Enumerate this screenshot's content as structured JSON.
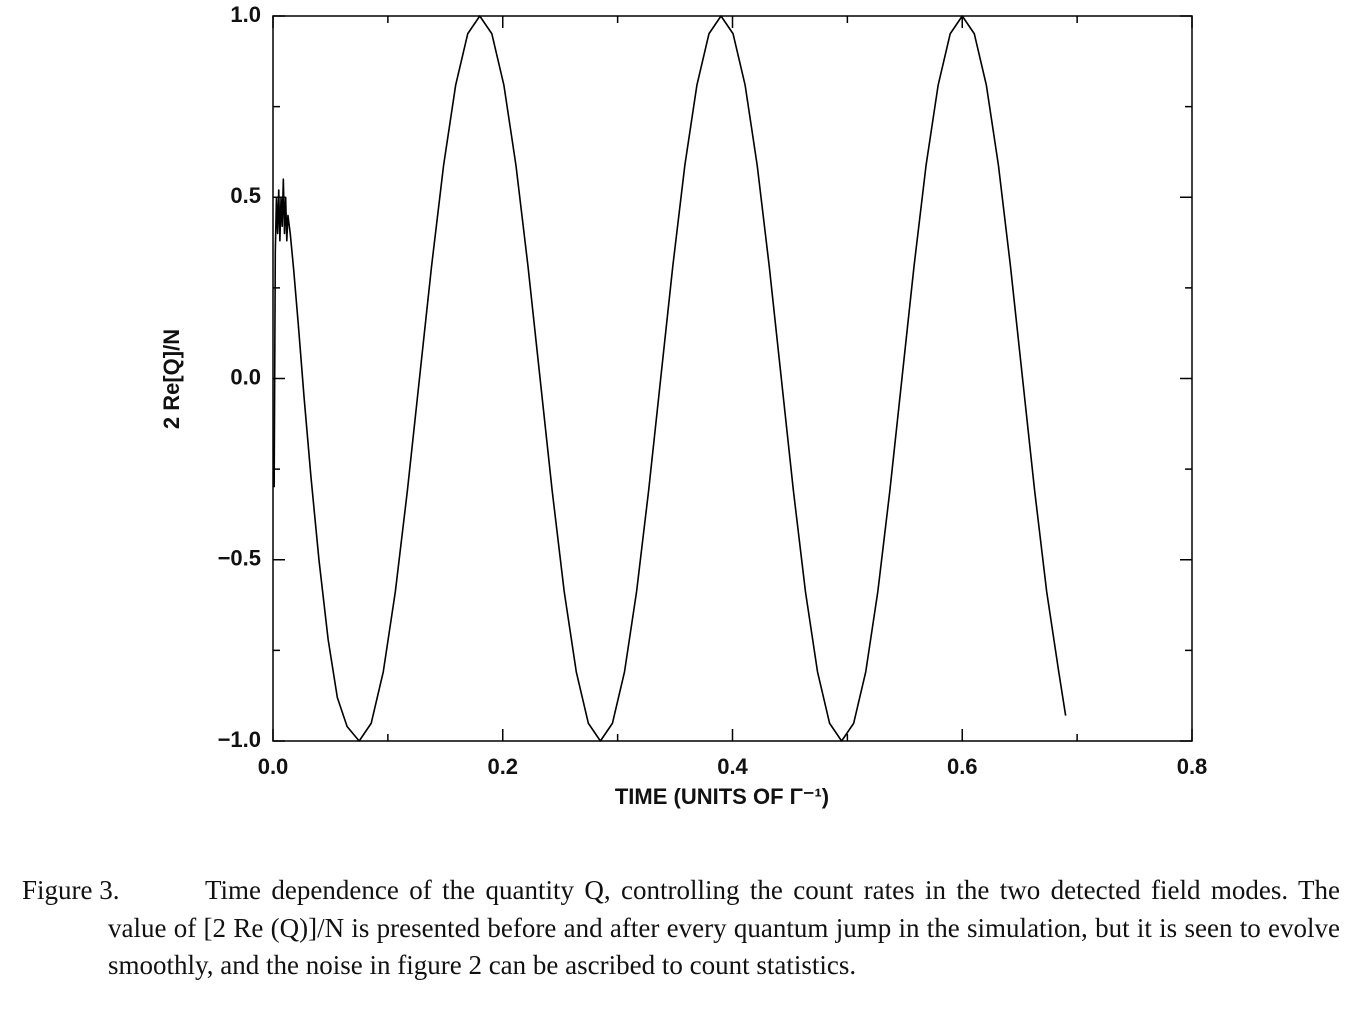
{
  "chart_data": {
    "type": "line",
    "x_label": "TIME (UNITS OF Γ⁻¹)",
    "y_label": "2 Re[Q]/N",
    "xlim": [
      0,
      0.8
    ],
    "ylim": [
      -1,
      1
    ],
    "xticks": [
      {
        "value": 0,
        "label": "0.0"
      },
      {
        "value": 0.2,
        "label": "0.2"
      },
      {
        "value": 0.4,
        "label": "0.4"
      },
      {
        "value": 0.6,
        "label": "0.6"
      },
      {
        "value": 0.8,
        "label": "0.8"
      }
    ],
    "yticks": [
      {
        "value": -1,
        "label": "−1.0"
      },
      {
        "value": -0.5,
        "label": "−0.5"
      },
      {
        "value": 0,
        "label": "0.0"
      },
      {
        "value": 0.5,
        "label": "0.5"
      },
      {
        "value": 1,
        "label": "1.0"
      }
    ],
    "xminorticks": [
      0.1,
      0.3,
      0.5,
      0.7
    ],
    "yminorticks": [
      -0.75,
      -0.25,
      0.25,
      0.75
    ],
    "color": "#000000",
    "x": [
      0.001,
      0.002,
      0.003,
      0.004,
      0.005,
      0.006,
      0.007,
      0.008,
      0.009,
      0.01,
      0.011,
      0.012,
      0.013,
      0.015,
      0.018,
      0.022,
      0.027,
      0.033,
      0.04,
      0.048,
      0.056,
      0.0645,
      0.075,
      0.0855,
      0.096,
      0.1065,
      0.117,
      0.1275,
      0.138,
      0.1485,
      0.159,
      0.1695,
      0.18,
      0.1905,
      0.201,
      0.2115,
      0.222,
      0.2325,
      0.243,
      0.2535,
      0.264,
      0.2745,
      0.285,
      0.2955,
      0.306,
      0.3165,
      0.327,
      0.3375,
      0.348,
      0.3585,
      0.369,
      0.3795,
      0.39,
      0.4005,
      0.411,
      0.4215,
      0.432,
      0.4425,
      0.453,
      0.4635,
      0.474,
      0.4845,
      0.495,
      0.5055,
      0.516,
      0.5265,
      0.537,
      0.5475,
      0.558,
      0.5685,
      0.579,
      0.5895,
      0.6,
      0.6105,
      0.621,
      0.6315,
      0.642,
      0.6525,
      0.663,
      0.6735,
      0.684,
      0.69
    ],
    "values": [
      -0.3,
      0.35,
      0.5,
      0.4,
      0.52,
      0.38,
      0.5,
      0.42,
      0.55,
      0.4,
      0.5,
      0.38,
      0.45,
      0.4,
      0.3,
      0.15,
      -0.05,
      -0.27,
      -0.5,
      -0.72,
      -0.88,
      -0.96,
      -1,
      -0.951,
      -0.809,
      -0.588,
      -0.309,
      0,
      0.309,
      0.588,
      0.809,
      0.951,
      1,
      0.951,
      0.809,
      0.588,
      0.309,
      0,
      -0.309,
      -0.588,
      -0.809,
      -0.951,
      -1,
      -0.951,
      -0.809,
      -0.588,
      -0.309,
      0,
      0.309,
      0.588,
      0.809,
      0.951,
      1,
      0.951,
      0.809,
      0.588,
      0.309,
      0,
      -0.309,
      -0.588,
      -0.809,
      -0.951,
      -1,
      -0.951,
      -0.809,
      -0.588,
      -0.309,
      0,
      0.309,
      0.588,
      0.809,
      0.951,
      1,
      0.951,
      0.809,
      0.588,
      0.309,
      0,
      -0.309,
      -0.588,
      -0.809,
      -0.93
    ]
  },
  "caption": {
    "label": "Figure 3.",
    "text": "Time dependence of the quantity Q, controlling the count rates in the two detected field modes. The value of [2 Re (Q)]/N is presented before and after every quantum jump in the simulation, but it is seen to evolve smoothly, and the noise in figure 2 can be ascribed to count statistics."
  }
}
